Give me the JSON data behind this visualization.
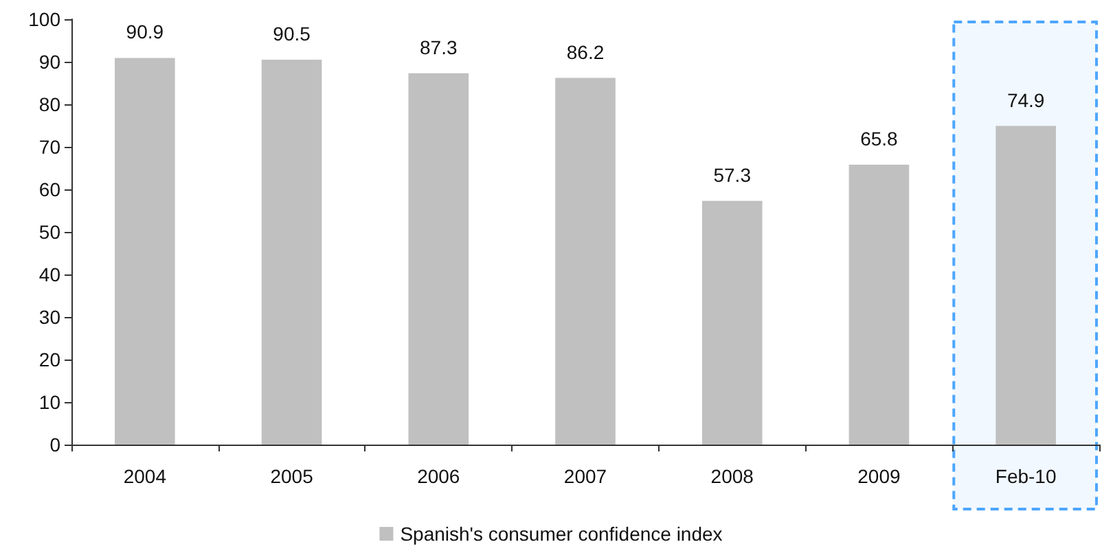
{
  "chart_data": {
    "type": "bar",
    "categories": [
      "2004",
      "2005",
      "2006",
      "2007",
      "2008",
      "2009",
      "Feb-10"
    ],
    "series": [
      {
        "name": "Spanish's consumer confidence index",
        "color": "#c0c0c0",
        "values": [
          90.9,
          90.5,
          87.3,
          86.2,
          57.3,
          65.8,
          74.9
        ]
      }
    ],
    "ylim": [
      0,
      100
    ],
    "yticks": [
      0,
      10,
      20,
      30,
      40,
      50,
      60,
      70,
      80,
      90,
      100
    ],
    "data_labels": true,
    "legend": "bottom",
    "bands": [
      {
        "axis": "x",
        "from": "Feb-10",
        "to": "Feb-10",
        "color": "#4da6ff"
      }
    ]
  }
}
